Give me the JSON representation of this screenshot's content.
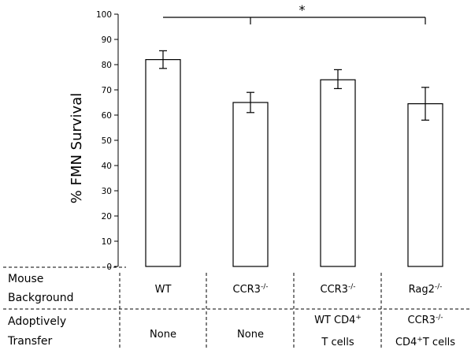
{
  "chart_data": {
    "type": "bar",
    "ylabel": "% FMN Survival",
    "ylim": [
      0,
      100
    ],
    "yticks": [
      0,
      10,
      20,
      30,
      40,
      50,
      60,
      70,
      80,
      90,
      100
    ],
    "values": [
      82,
      65,
      74,
      64.5
    ],
    "error_low": [
      3.5,
      4,
      3.5,
      6.5
    ],
    "error_high": [
      3.5,
      4,
      4,
      6.5
    ],
    "bar_fill": "#ffffff",
    "bar_stroke": "#000000",
    "significance": {
      "label": "*",
      "from_category": 0,
      "to_categories": [
        1,
        3
      ]
    },
    "table": {
      "rows": [
        {
          "label": [
            "Mouse",
            "Background"
          ],
          "cells": [
            [
              {
                "base": "WT",
                "sup": ""
              }
            ],
            [
              {
                "base": "CCR3",
                "sup": "-/-"
              }
            ],
            [
              {
                "base": "CCR3",
                "sup": "-/-"
              }
            ],
            [
              {
                "base": "Rag2",
                "sup": "-/-"
              }
            ]
          ]
        },
        {
          "label": [
            "Adoptively",
            "Transfer"
          ],
          "cells": [
            [
              {
                "base": "None",
                "sup": ""
              }
            ],
            [
              {
                "base": "None",
                "sup": ""
              }
            ],
            [
              {
                "base": "WT CD4",
                "sup": "+"
              },
              {
                "base": "T cells",
                "sup": ""
              }
            ],
            [
              {
                "base": "CCR3",
                "sup": "-/-"
              },
              {
                "base": "CD4",
                "sup": "+",
                "tail": "T cells"
              }
            ]
          ]
        }
      ]
    }
  }
}
